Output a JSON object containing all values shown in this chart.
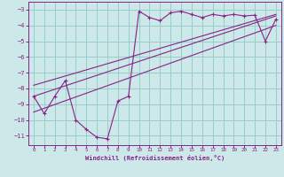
{
  "xlabel": "Windchill (Refroidissement éolien,°C)",
  "bg_color": "#cce8e8",
  "line_color": "#882288",
  "grid_color": "#99cccc",
  "xlim": [
    -0.5,
    23.5
  ],
  "ylim": [
    -11.6,
    -2.5
  ],
  "yticks": [
    -3,
    -4,
    -5,
    -6,
    -7,
    -8,
    -9,
    -10,
    -11
  ],
  "xticks": [
    0,
    1,
    2,
    3,
    4,
    5,
    6,
    7,
    8,
    9,
    10,
    11,
    12,
    13,
    14,
    15,
    16,
    17,
    18,
    19,
    20,
    21,
    22,
    23
  ],
  "scatter_x": [
    0,
    1,
    2,
    3,
    4,
    5,
    6,
    7,
    8,
    9,
    10,
    11,
    12,
    13,
    14,
    15,
    16,
    17,
    18,
    19,
    20,
    21,
    22,
    23
  ],
  "scatter_y": [
    -8.5,
    -9.6,
    -8.5,
    -7.5,
    -10.0,
    -10.6,
    -11.1,
    -11.2,
    -8.8,
    -8.5,
    -3.1,
    -3.5,
    -3.7,
    -3.2,
    -3.1,
    -3.3,
    -3.5,
    -3.3,
    -3.4,
    -3.3,
    -3.4,
    -3.35,
    -5.0,
    -3.6
  ],
  "line1_x": [
    0,
    23
  ],
  "line1_y": [
    -8.5,
    -3.4
  ],
  "line2_x": [
    0,
    23
  ],
  "line2_y": [
    -7.8,
    -3.3
  ],
  "line3_x": [
    0,
    23
  ],
  "line3_y": [
    -9.5,
    -4.0
  ]
}
